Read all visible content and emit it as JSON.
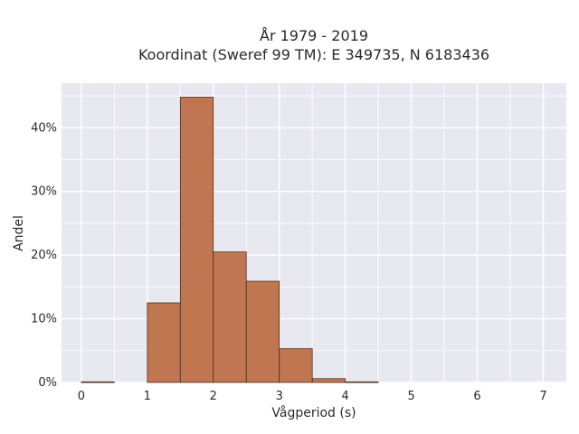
{
  "chart_data": {
    "type": "bar",
    "title_line1": "År 1979 - 2019",
    "title_line2": "Koordinat (Sweref 99 TM): E 349735, N 6183436",
    "xlabel": "Vågperiod (s)",
    "ylabel": "Andel",
    "bins": [
      {
        "x0": 0.0,
        "x1": 0.5,
        "value": 0.1
      },
      {
        "x0": 0.5,
        "x1": 1.0,
        "value": 0.0
      },
      {
        "x0": 1.0,
        "x1": 1.5,
        "value": 12.5
      },
      {
        "x0": 1.5,
        "x1": 2.0,
        "value": 44.8
      },
      {
        "x0": 2.0,
        "x1": 2.5,
        "value": 20.5
      },
      {
        "x0": 2.5,
        "x1": 3.0,
        "value": 15.9
      },
      {
        "x0": 3.0,
        "x1": 3.5,
        "value": 5.3
      },
      {
        "x0": 3.5,
        "x1": 4.0,
        "value": 0.6
      },
      {
        "x0": 4.0,
        "x1": 4.5,
        "value": 0.1
      }
    ],
    "xlim": [
      -0.3,
      7.35
    ],
    "ylim": [
      0,
      47
    ],
    "xticks": [
      0,
      1,
      2,
      3,
      4,
      5,
      6,
      7
    ],
    "yticks": [
      0,
      10,
      20,
      30,
      40
    ],
    "ytick_labels": [
      "0%",
      "10%",
      "20%",
      "30%",
      "40%"
    ],
    "grid": true,
    "bar_color": "#c07650",
    "bar_edge_color": "#3b2418",
    "plot_bg_color": "#e8e8f0",
    "grid_color": "#ffffff"
  }
}
